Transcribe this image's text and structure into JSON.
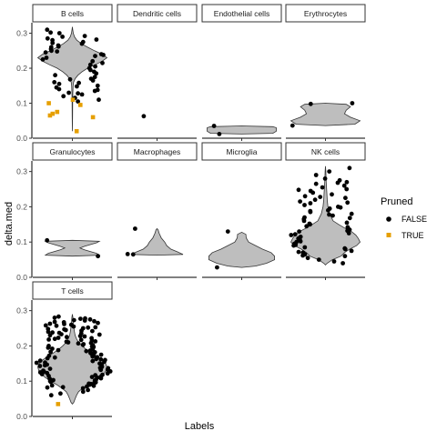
{
  "chart_data": {
    "type": "violin",
    "xlabel": "Labels",
    "ylabel": "delta.med",
    "ylim": [
      0,
      0.33
    ],
    "y_ticks": [
      0.0,
      0.1,
      0.2,
      0.3
    ],
    "y_tick_labels": [
      "0.0",
      "0.1",
      "0.2",
      "0.3"
    ],
    "facet_rows": 3,
    "facet_cols": 4,
    "legend": {
      "title": "Pruned",
      "position": "right",
      "entries": [
        {
          "label": "FALSE",
          "color": "#000000"
        },
        {
          "label": "TRUE",
          "color": "#E69F00"
        }
      ]
    },
    "panels": [
      {
        "label": "B cells",
        "violin": [
          [
            0.02,
            0.0
          ],
          [
            0.06,
            0.004
          ],
          [
            0.1,
            0.008
          ],
          [
            0.13,
            0.013
          ],
          [
            0.15,
            0.02
          ],
          [
            0.16,
            0.035
          ],
          [
            0.17,
            0.08
          ],
          [
            0.18,
            0.16
          ],
          [
            0.19,
            0.28
          ],
          [
            0.2,
            0.44
          ],
          [
            0.21,
            0.66
          ],
          [
            0.22,
            0.86
          ],
          [
            0.23,
            1.0
          ],
          [
            0.24,
            0.86
          ],
          [
            0.25,
            0.64
          ],
          [
            0.26,
            0.44
          ],
          [
            0.27,
            0.26
          ],
          [
            0.28,
            0.13
          ],
          [
            0.29,
            0.06
          ],
          [
            0.3,
            0.025
          ],
          [
            0.31,
            0.01
          ],
          [
            0.318,
            0.0
          ]
        ],
        "points_false": [
          0.28,
          0.29,
          0.27,
          0.26,
          0.25,
          0.24,
          0.23,
          0.22,
          0.21,
          0.2,
          0.19,
          0.18,
          0.17,
          0.16,
          0.15,
          0.14,
          0.13,
          0.12,
          0.125,
          0.135,
          0.145,
          0.155,
          0.165,
          0.175,
          0.185,
          0.195,
          0.205,
          0.215,
          0.225,
          0.235,
          0.245,
          0.255,
          0.265,
          0.275,
          0.285,
          0.3,
          0.31,
          0.11,
          0.115,
          0.105,
          0.128,
          0.138,
          0.148,
          0.158,
          0.168,
          0.262,
          0.272,
          0.282,
          0.292,
          0.302,
          0.238,
          0.248
        ],
        "points_true": [
          0.11,
          0.095,
          0.1,
          0.075,
          0.065,
          0.07,
          0.06,
          0.02
        ]
      },
      {
        "label": "Dendritic cells",
        "violin": [],
        "points_false": [
          0.063
        ],
        "points_true": []
      },
      {
        "label": "Endothelial cells",
        "violin": [
          [
            0.012,
            0.0
          ],
          [
            0.014,
            0.9
          ],
          [
            0.02,
            1.0
          ],
          [
            0.03,
            1.0
          ],
          [
            0.033,
            0.9
          ],
          [
            0.035,
            0.0
          ]
        ],
        "points_false": [
          0.012,
          0.035
        ],
        "points_true": []
      },
      {
        "label": "Erythrocytes",
        "violin": [
          [
            0.036,
            0.0
          ],
          [
            0.04,
            0.85
          ],
          [
            0.05,
            1.0
          ],
          [
            0.06,
            0.72
          ],
          [
            0.07,
            0.55
          ],
          [
            0.08,
            0.6
          ],
          [
            0.09,
            0.72
          ],
          [
            0.097,
            0.6
          ],
          [
            0.1,
            0.0
          ]
        ],
        "points_false": [
          0.036,
          0.1,
          0.098
        ],
        "points_true": []
      },
      {
        "label": "Granulocytes",
        "violin": [
          [
            0.06,
            0.0
          ],
          [
            0.063,
            0.78
          ],
          [
            0.068,
            0.7
          ],
          [
            0.078,
            0.35
          ],
          [
            0.083,
            0.22
          ],
          [
            0.088,
            0.35
          ],
          [
            0.098,
            0.7
          ],
          [
            0.102,
            0.78
          ],
          [
            0.105,
            0.0
          ]
        ],
        "points_false": [
          0.105,
          0.06
        ],
        "points_true": []
      },
      {
        "label": "Macrophages",
        "violin": [
          [
            0.063,
            0.0
          ],
          [
            0.065,
            0.75
          ],
          [
            0.072,
            0.6
          ],
          [
            0.08,
            0.4
          ],
          [
            0.09,
            0.28
          ],
          [
            0.1,
            0.22
          ],
          [
            0.112,
            0.12
          ],
          [
            0.125,
            0.06
          ],
          [
            0.135,
            0.03
          ],
          [
            0.138,
            0.0
          ]
        ],
        "points_false": [
          0.138,
          0.065,
          0.066
        ],
        "points_true": []
      },
      {
        "label": "Microglia",
        "violin": [
          [
            0.028,
            0.0
          ],
          [
            0.032,
            0.4
          ],
          [
            0.04,
            0.72
          ],
          [
            0.05,
            0.95
          ],
          [
            0.06,
            0.95
          ],
          [
            0.07,
            0.85
          ],
          [
            0.08,
            0.6
          ],
          [
            0.09,
            0.4
          ],
          [
            0.1,
            0.2
          ],
          [
            0.112,
            0.13
          ],
          [
            0.122,
            0.12
          ],
          [
            0.128,
            0.0
          ]
        ],
        "points_false": [
          0.13,
          0.028
        ],
        "points_true": []
      },
      {
        "label": "NK cells",
        "violin": [
          [
            0.035,
            0.0
          ],
          [
            0.04,
            0.05
          ],
          [
            0.05,
            0.2
          ],
          [
            0.06,
            0.45
          ],
          [
            0.07,
            0.55
          ],
          [
            0.08,
            0.7
          ],
          [
            0.09,
            0.9
          ],
          [
            0.1,
            1.0
          ],
          [
            0.11,
            0.95
          ],
          [
            0.12,
            0.88
          ],
          [
            0.13,
            0.75
          ],
          [
            0.14,
            0.55
          ],
          [
            0.15,
            0.38
          ],
          [
            0.16,
            0.22
          ],
          [
            0.18,
            0.12
          ],
          [
            0.2,
            0.07
          ],
          [
            0.22,
            0.05
          ],
          [
            0.24,
            0.04
          ],
          [
            0.27,
            0.02
          ],
          [
            0.3,
            0.01
          ],
          [
            0.315,
            0.0
          ]
        ],
        "points_false": [
          0.04,
          0.05,
          0.06,
          0.07,
          0.08,
          0.09,
          0.1,
          0.11,
          0.12,
          0.13,
          0.14,
          0.15,
          0.16,
          0.17,
          0.18,
          0.19,
          0.2,
          0.21,
          0.22,
          0.23,
          0.24,
          0.25,
          0.26,
          0.27,
          0.28,
          0.29,
          0.3,
          0.31,
          0.045,
          0.055,
          0.065,
          0.075,
          0.085,
          0.095,
          0.105,
          0.115,
          0.125,
          0.135,
          0.145,
          0.155,
          0.165,
          0.175,
          0.185,
          0.195,
          0.205,
          0.215,
          0.225,
          0.235,
          0.245,
          0.255,
          0.265,
          0.275,
          0.062,
          0.072,
          0.082,
          0.092,
          0.102,
          0.112,
          0.122,
          0.132,
          0.142,
          0.152,
          0.168,
          0.178,
          0.188,
          0.198,
          0.212,
          0.228,
          0.248,
          0.268
        ],
        "points_true": []
      },
      {
        "label": "T cells",
        "violin": [
          [
            0.035,
            0.0
          ],
          [
            0.04,
            0.04
          ],
          [
            0.05,
            0.08
          ],
          [
            0.06,
            0.12
          ],
          [
            0.07,
            0.18
          ],
          [
            0.08,
            0.3
          ],
          [
            0.09,
            0.45
          ],
          [
            0.1,
            0.62
          ],
          [
            0.11,
            0.78
          ],
          [
            0.12,
            0.9
          ],
          [
            0.13,
            0.97
          ],
          [
            0.14,
            1.0
          ],
          [
            0.15,
            0.96
          ],
          [
            0.16,
            0.86
          ],
          [
            0.17,
            0.72
          ],
          [
            0.18,
            0.55
          ],
          [
            0.19,
            0.4
          ],
          [
            0.2,
            0.28
          ],
          [
            0.21,
            0.18
          ],
          [
            0.22,
            0.12
          ],
          [
            0.23,
            0.08
          ],
          [
            0.24,
            0.06
          ],
          [
            0.26,
            0.03
          ],
          [
            0.28,
            0.015
          ],
          [
            0.29,
            0.0
          ]
        ],
        "points_false": [
          0.08,
          0.09,
          0.1,
          0.11,
          0.12,
          0.13,
          0.14,
          0.15,
          0.16,
          0.17,
          0.18,
          0.19,
          0.2,
          0.21,
          0.22,
          0.23,
          0.24,
          0.25,
          0.26,
          0.27,
          0.28,
          0.085,
          0.095,
          0.105,
          0.115,
          0.125,
          0.135,
          0.145,
          0.155,
          0.165,
          0.175,
          0.185,
          0.195,
          0.205,
          0.215,
          0.225,
          0.235,
          0.245,
          0.255,
          0.265,
          0.275,
          0.082,
          0.092,
          0.102,
          0.112,
          0.122,
          0.132,
          0.142,
          0.152,
          0.162,
          0.172,
          0.182,
          0.192,
          0.202,
          0.212,
          0.222,
          0.232,
          0.242,
          0.252,
          0.262,
          0.272,
          0.088,
          0.098,
          0.108,
          0.118,
          0.128,
          0.138,
          0.148,
          0.158,
          0.168,
          0.178,
          0.188,
          0.198,
          0.208,
          0.218,
          0.228,
          0.238,
          0.248,
          0.258,
          0.268,
          0.278,
          0.083,
          0.093,
          0.103,
          0.113,
          0.123,
          0.133,
          0.143,
          0.153,
          0.163,
          0.173,
          0.183,
          0.193,
          0.203,
          0.213,
          0.223,
          0.233,
          0.243,
          0.253,
          0.263,
          0.273,
          0.283,
          0.087,
          0.097,
          0.107,
          0.117,
          0.127,
          0.137,
          0.147,
          0.157,
          0.167,
          0.177,
          0.187,
          0.197,
          0.207,
          0.217,
          0.227,
          0.237,
          0.247,
          0.257,
          0.267,
          0.277,
          0.06,
          0.065,
          0.07,
          0.075
        ],
        "points_true": [
          0.035
        ]
      }
    ]
  }
}
